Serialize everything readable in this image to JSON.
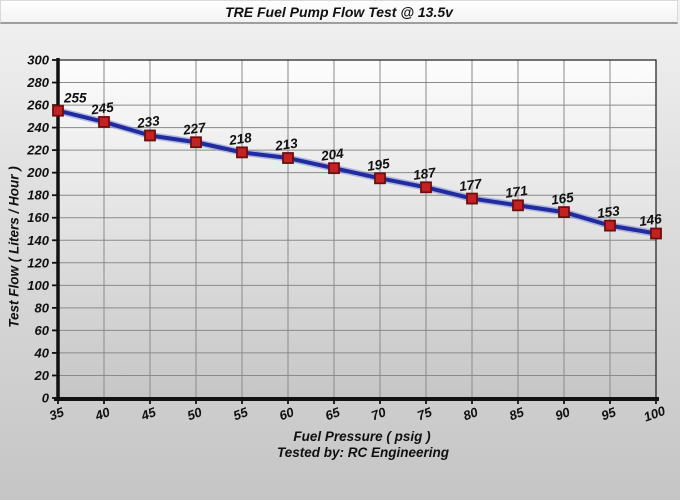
{
  "chart_data": {
    "type": "line",
    "title": "TRE Fuel Pump Flow Test @ 13.5v",
    "xlabel": "Fuel Pressure ( psig )",
    "ylabel": "Test Flow ( Liters / Hour )",
    "annotation": "Tested by: RC Engineering",
    "x": [
      35,
      40,
      45,
      50,
      55,
      60,
      65,
      70,
      75,
      80,
      85,
      90,
      95,
      100
    ],
    "values": [
      255,
      245,
      233,
      227,
      218,
      213,
      204,
      195,
      187,
      177,
      171,
      165,
      153,
      146
    ],
    "xlim": [
      35,
      100
    ],
    "ylim": [
      0,
      300
    ],
    "x_ticks": [
      35,
      40,
      45,
      50,
      55,
      60,
      65,
      70,
      75,
      80,
      85,
      90,
      95,
      100
    ],
    "y_ticks": [
      0,
      20,
      40,
      60,
      80,
      100,
      120,
      140,
      160,
      180,
      200,
      220,
      240,
      260,
      280,
      300
    ],
    "grid": true,
    "legend": false,
    "marker": "square",
    "colors": {
      "line": "#1f2b9e",
      "line_halo": "#8089cf",
      "marker_fill": "#c42222",
      "marker_border": "#6e0e0e",
      "grid": "#8a8a8a",
      "axis": "#111111",
      "text": "#101010",
      "plot_border": "#1a1a1a",
      "plot_bg_top": "#fdfdfd",
      "plot_bg_bottom": "#c6c6c6"
    }
  }
}
